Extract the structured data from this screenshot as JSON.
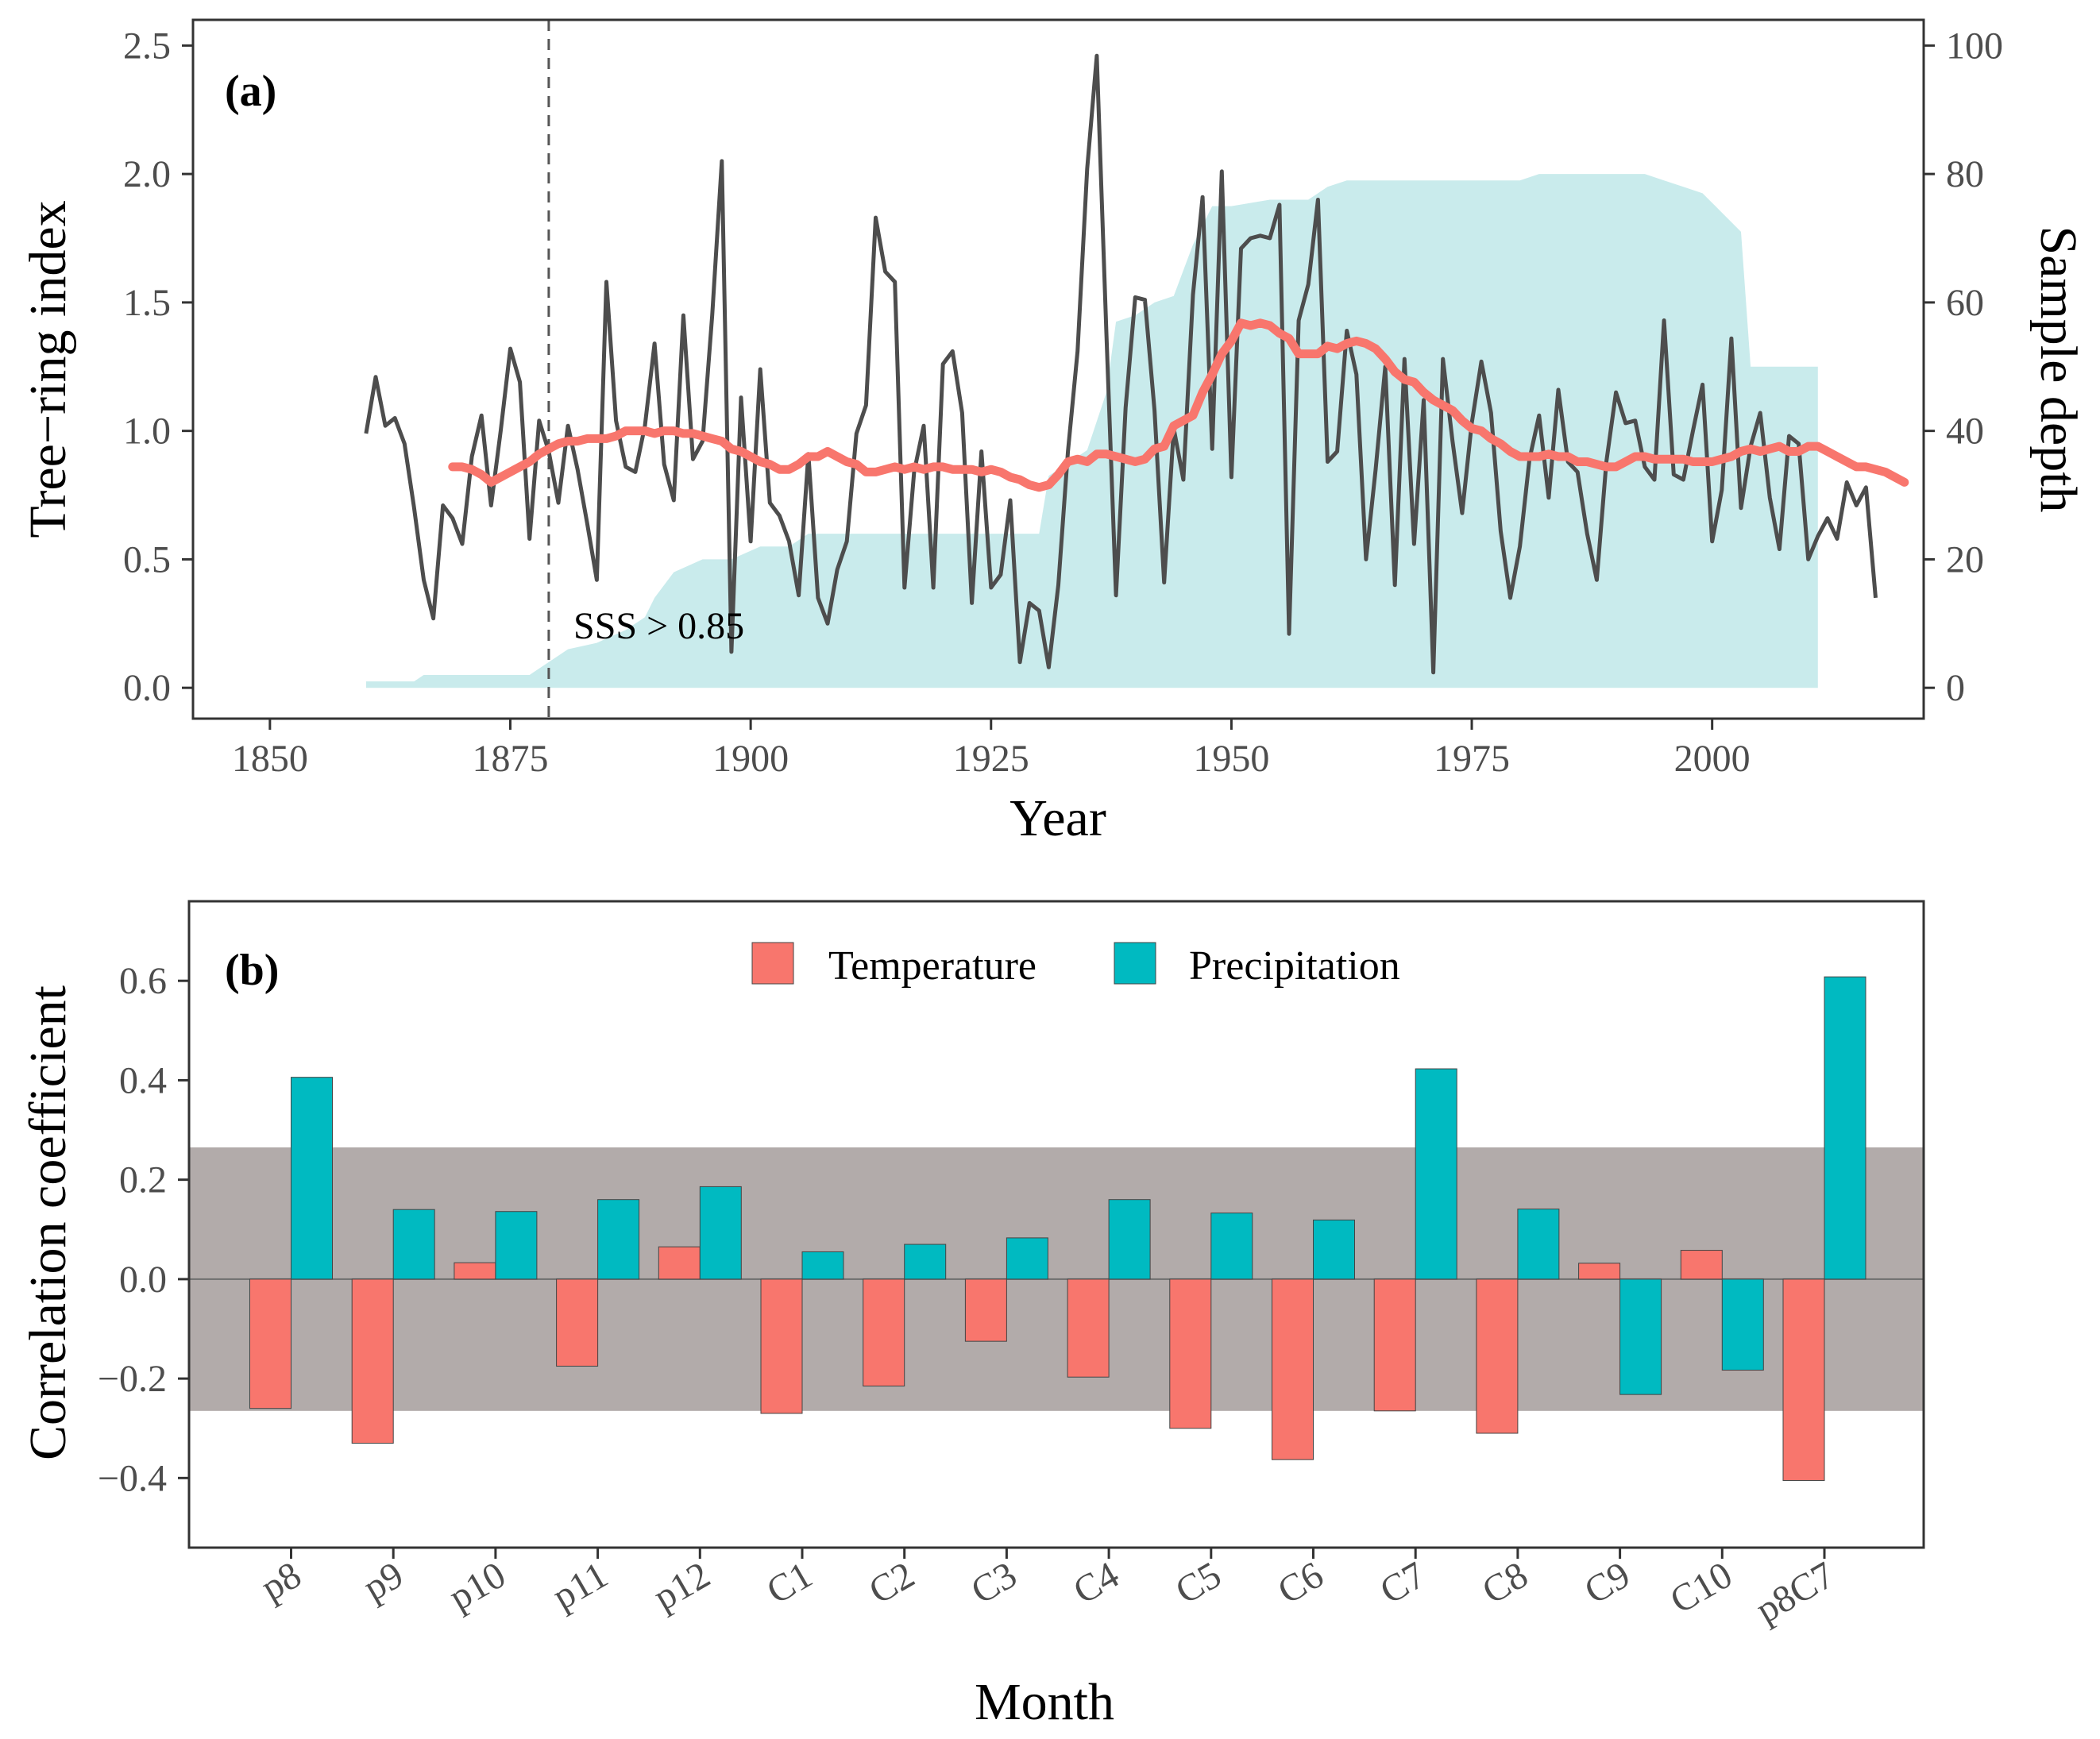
{
  "chart_data": [
    {
      "type": "line",
      "panel_label": "(a)",
      "xlabel": "Year",
      "ylabel": "Tree−ring index",
      "y2label": "Sample depth",
      "xlim": [
        1842,
        2022
      ],
      "ylim": [
        -0.12,
        2.6
      ],
      "y2lim": [
        -4.8,
        104
      ],
      "x_ticks": [
        1850,
        1875,
        1900,
        1925,
        1950,
        1975,
        2000
      ],
      "y_ticks": [
        "0.0",
        "0.5",
        "1.0",
        "1.5",
        "2.0",
        "2.5"
      ],
      "y2_ticks": [
        0,
        20,
        40,
        60,
        80,
        100
      ],
      "annotation": "SSS > 0.85",
      "vline_year": 1879,
      "colors": {
        "index": "#4d4d4d",
        "smooth": "#f8766d",
        "depth": "#c9ebec",
        "vline": "#555555"
      },
      "series": [
        {
          "name": "Tree-ring index",
          "x_start": 1860,
          "values": [
            0.99,
            1.21,
            1.02,
            1.05,
            0.95,
            0.7,
            0.42,
            0.27,
            0.71,
            0.66,
            0.56,
            0.9,
            1.06,
            0.71,
            1.0,
            1.32,
            1.19,
            0.58,
            1.04,
            0.92,
            0.72,
            1.02,
            0.85,
            0.64,
            0.42,
            1.58,
            1.04,
            0.86,
            0.84,
            1.02,
            1.34,
            0.87,
            0.73,
            1.45,
            0.89,
            0.96,
            1.45,
            2.05,
            0.14,
            1.13,
            0.57,
            1.24,
            0.72,
            0.67,
            0.57,
            0.36,
            0.91,
            0.35,
            0.25,
            0.46,
            0.57,
            0.99,
            1.1,
            1.83,
            1.62,
            1.58,
            0.39,
            0.84,
            1.02,
            0.39,
            1.26,
            1.31,
            1.07,
            0.33,
            0.92,
            0.39,
            0.44,
            0.73,
            0.1,
            0.33,
            0.3,
            0.08,
            0.4,
            0.92,
            1.31,
            2.02,
            2.46,
            1.38,
            0.36,
            1.09,
            1.52,
            1.51,
            1.08,
            0.41,
            1.01,
            0.81,
            1.53,
            1.91,
            0.93,
            2.01,
            0.82,
            1.71,
            1.75,
            1.76,
            1.75,
            1.88,
            0.21,
            1.43,
            1.57,
            1.9,
            0.88,
            0.92,
            1.39,
            1.22,
            0.5,
            0.85,
            1.25,
            0.4,
            1.28,
            0.56,
            1.12,
            0.06,
            1.28,
            0.96,
            0.68,
            1.03,
            1.27,
            1.07,
            0.61,
            0.35,
            0.55,
            0.89,
            1.06,
            0.74,
            1.16,
            0.88,
            0.84,
            0.6,
            0.42,
            0.88,
            1.15,
            1.03,
            1.04,
            0.86,
            0.81,
            1.43,
            0.83,
            0.81,
            1.0,
            1.18,
            0.57,
            0.77,
            1.36,
            0.7,
            0.94,
            1.07,
            0.74,
            0.54,
            0.98,
            0.95,
            0.5,
            0.59,
            0.66,
            0.58,
            0.8,
            0.71,
            0.78,
            0.35
          ]
        },
        {
          "name": "Smoothed index",
          "x_start": 1869,
          "values": [
            0.86,
            0.86,
            0.85,
            0.83,
            0.8,
            0.82,
            0.84,
            0.86,
            0.88,
            0.91,
            0.93,
            0.95,
            0.96,
            0.96,
            0.97,
            0.97,
            0.97,
            0.98,
            1.0,
            1.0,
            1.0,
            0.99,
            1.0,
            1.0,
            0.99,
            0.99,
            0.98,
            0.97,
            0.96,
            0.93,
            0.92,
            0.9,
            0.88,
            0.87,
            0.85,
            0.85,
            0.87,
            0.9,
            0.9,
            0.92,
            0.9,
            0.88,
            0.87,
            0.84,
            0.84,
            0.85,
            0.86,
            0.85,
            0.86,
            0.85,
            0.86,
            0.86,
            0.85,
            0.85,
            0.85,
            0.84,
            0.85,
            0.84,
            0.82,
            0.81,
            0.79,
            0.78,
            0.79,
            0.83,
            0.88,
            0.89,
            0.88,
            0.91,
            0.91,
            0.9,
            0.89,
            0.88,
            0.89,
            0.93,
            0.94,
            1.02,
            1.04,
            1.06,
            1.15,
            1.22,
            1.3,
            1.35,
            1.42,
            1.41,
            1.42,
            1.41,
            1.38,
            1.36,
            1.3,
            1.3,
            1.3,
            1.33,
            1.32,
            1.34,
            1.35,
            1.34,
            1.32,
            1.28,
            1.23,
            1.2,
            1.19,
            1.15,
            1.12,
            1.1,
            1.08,
            1.04,
            1.01,
            1.0,
            0.97,
            0.95,
            0.92,
            0.9,
            0.9,
            0.9,
            0.91,
            0.9,
            0.9,
            0.88,
            0.88,
            0.87,
            0.86,
            0.86,
            0.88,
            0.9,
            0.9,
            0.89,
            0.89,
            0.89,
            0.89,
            0.88,
            0.88,
            0.88,
            0.89,
            0.9,
            0.92,
            0.93,
            0.92,
            0.93,
            0.94,
            0.92,
            0.92,
            0.94,
            0.94,
            0.92,
            0.9,
            0.88,
            0.86,
            0.86,
            0.85,
            0.84,
            0.82,
            0.8
          ]
        },
        {
          "name": "Sample depth",
          "axis": "right",
          "points": [
            [
              1860,
              1
            ],
            [
              1865,
              1
            ],
            [
              1866,
              2
            ],
            [
              1877,
              2
            ],
            [
              1878,
              3
            ],
            [
              1880,
              5
            ],
            [
              1881,
              6
            ],
            [
              1884,
              7
            ],
            [
              1887,
              9
            ],
            [
              1889,
              11
            ],
            [
              1890,
              14
            ],
            [
              1892,
              18
            ],
            [
              1895,
              20
            ],
            [
              1898,
              20
            ],
            [
              1901,
              22
            ],
            [
              1904,
              22
            ],
            [
              1906,
              24
            ],
            [
              1930,
              24
            ],
            [
              1931,
              33
            ],
            [
              1935,
              37
            ],
            [
              1937,
              46
            ],
            [
              1938,
              57
            ],
            [
              1940,
              58
            ],
            [
              1942,
              60
            ],
            [
              1944,
              61
            ],
            [
              1946,
              69
            ],
            [
              1948,
              75
            ],
            [
              1950,
              75
            ],
            [
              1954,
              76
            ],
            [
              1958,
              76
            ],
            [
              1960,
              78
            ],
            [
              1962,
              79
            ],
            [
              1980,
              79
            ],
            [
              1982,
              80
            ],
            [
              1993,
              80
            ],
            [
              1995,
              79
            ],
            [
              1997,
              78
            ],
            [
              1999,
              77
            ],
            [
              2001,
              74
            ],
            [
              2003,
              71
            ],
            [
              2004,
              50
            ],
            [
              2011,
              50
            ],
            [
              2011,
              0
            ],
            [
              1860,
              0
            ]
          ]
        }
      ]
    },
    {
      "type": "bar",
      "panel_label": "(b)",
      "xlabel": "Month",
      "ylabel": "Correlation coefficient",
      "ylim": [
        -0.54,
        0.76
      ],
      "y_ticks": [
        "−0.4",
        "−0.2",
        "0.0",
        "0.2",
        "0.4",
        "0.6"
      ],
      "significance_band": [
        -0.265,
        0.265
      ],
      "categories": [
        "p8",
        "p9",
        "p10",
        "p11",
        "p12",
        "C1",
        "C2",
        "C3",
        "C4",
        "C5",
        "C6",
        "C7",
        "C8",
        "C9",
        "C10",
        "p8C7"
      ],
      "series": [
        {
          "name": "Temperature",
          "color": "#f8766d",
          "values": [
            -0.26,
            -0.33,
            0.033,
            -0.175,
            0.065,
            -0.27,
            -0.215,
            -0.125,
            -0.197,
            -0.3,
            -0.363,
            -0.265,
            -0.31,
            0.032,
            0.058,
            -0.405
          ]
        },
        {
          "name": "Precipitation",
          "color": "#00bac1",
          "values": [
            0.406,
            0.14,
            0.136,
            0.16,
            0.186,
            0.055,
            0.07,
            0.083,
            0.16,
            0.133,
            0.119,
            0.423,
            0.141,
            -0.232,
            -0.183,
            0.608
          ]
        }
      ],
      "colors": {
        "band": "#b2abaa"
      }
    }
  ]
}
